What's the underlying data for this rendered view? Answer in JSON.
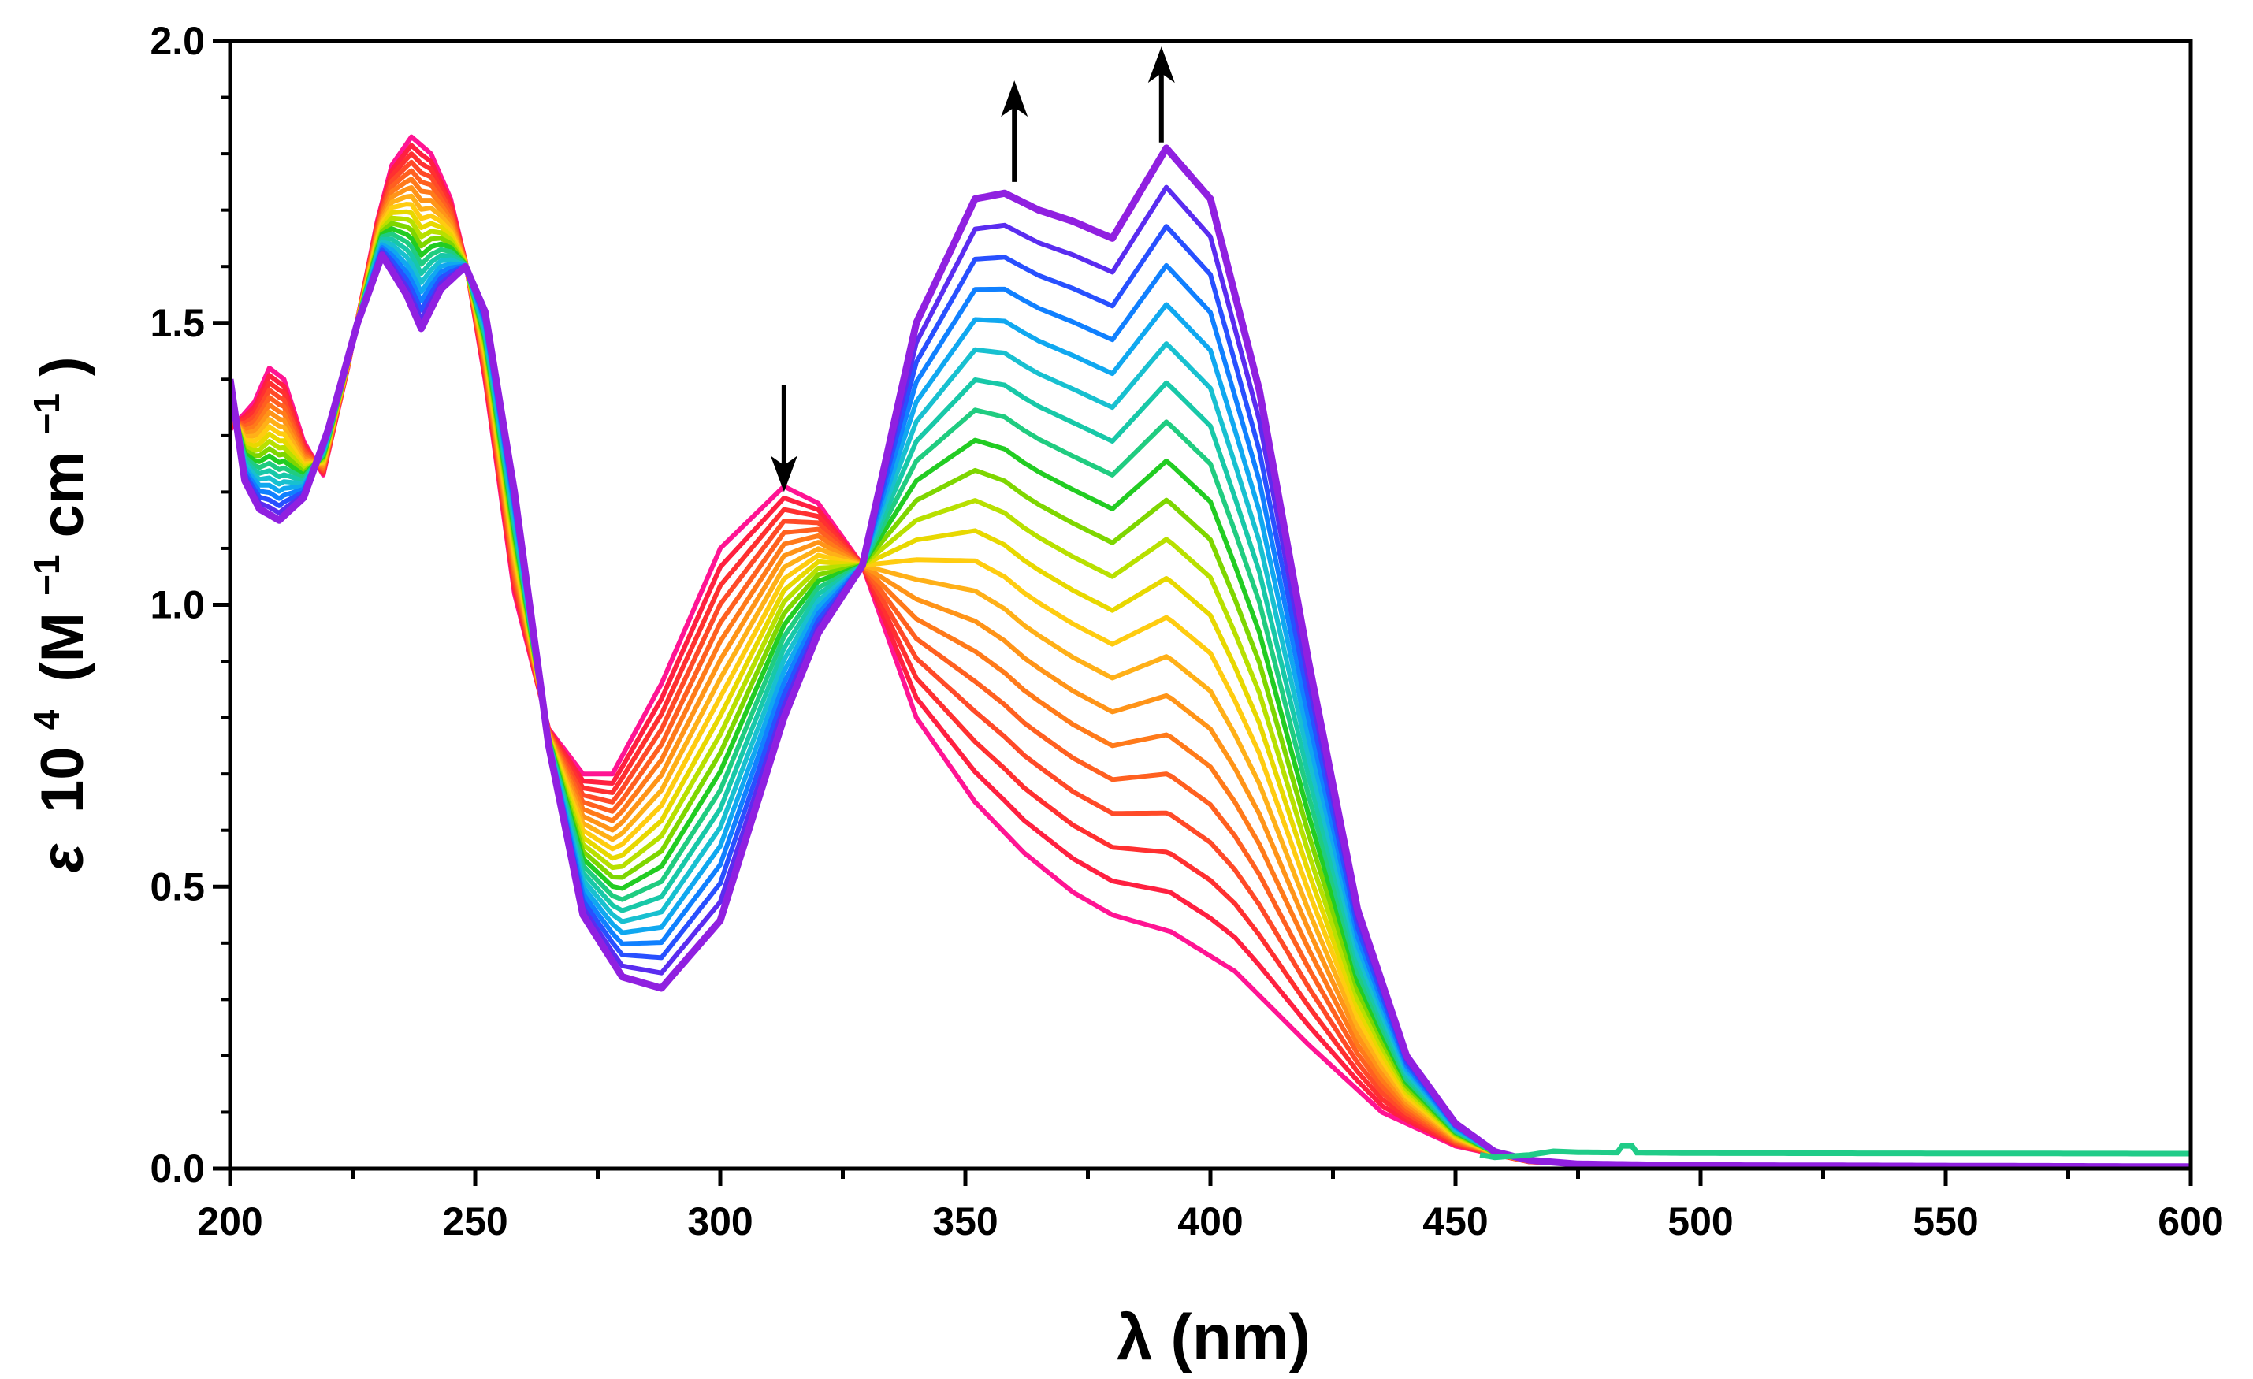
{
  "chart_data": {
    "type": "line",
    "title": "",
    "xlabel": {
      "symbol": "λ",
      "units": "(nm)"
    },
    "ylabel": {
      "symbol": "ε",
      "scale": "10",
      "scale_exp": "4",
      "units_prefix": "(M",
      "exp1": "−1",
      "mid": " cm",
      "exp2": "−1",
      "units_suffix": ")"
    },
    "xlim": [
      200,
      600
    ],
    "ylim": [
      0.0,
      2.0
    ],
    "x_ticks": [
      200,
      250,
      300,
      350,
      400,
      450,
      500,
      550,
      600
    ],
    "x_tick_labels": [
      "200",
      "250",
      "300",
      "350",
      "400",
      "450",
      "500",
      "550",
      "600"
    ],
    "y_ticks": [
      0.0,
      0.5,
      1.0,
      1.5,
      2.0
    ],
    "y_tick_labels": [
      "0.0",
      "0.5",
      "1.0",
      "1.5",
      "2.0"
    ],
    "grid": false,
    "legend": "none",
    "series_count": 21,
    "series_colors": [
      "#ff1493",
      "#ff2040",
      "#ff3030",
      "#ff4a28",
      "#ff6020",
      "#ff7a1a",
      "#ff9418",
      "#ffb018",
      "#ffcc10",
      "#e8d800",
      "#b8e000",
      "#7ed600",
      "#22cc22",
      "#20cc80",
      "#18c8a8",
      "#18c0d0",
      "#10a8f0",
      "#1080ff",
      "#2850ff",
      "#5a2cf0",
      "#9020e0"
    ],
    "series_start": {
      "x": [
        200,
        205,
        208,
        211,
        215,
        219,
        224,
        230,
        233,
        237,
        241,
        245,
        248,
        252,
        258,
        265,
        272,
        278,
        288,
        300,
        313,
        320,
        329,
        340,
        352,
        362,
        372,
        380,
        392,
        405,
        420,
        435,
        450,
        465,
        480,
        500,
        550,
        600
      ],
      "y": [
        1.31,
        1.36,
        1.42,
        1.4,
        1.29,
        1.23,
        1.42,
        1.68,
        1.78,
        1.83,
        1.8,
        1.72,
        1.61,
        1.4,
        1.02,
        0.78,
        0.7,
        0.7,
        0.86,
        1.1,
        1.21,
        1.18,
        1.07,
        0.8,
        0.65,
        0.56,
        0.49,
        0.45,
        0.42,
        0.35,
        0.22,
        0.1,
        0.04,
        0.012,
        0.006,
        0.004,
        0.003,
        0.002
      ]
    },
    "series_end": {
      "x": [
        200,
        203,
        206,
        210,
        215,
        220,
        226,
        231,
        236,
        239,
        243,
        248,
        252,
        258,
        265,
        272,
        280,
        288,
        300,
        313,
        320,
        329,
        340,
        352,
        358,
        365,
        372,
        380,
        391,
        400,
        410,
        420,
        430,
        440,
        450,
        458,
        465,
        475,
        500,
        550,
        600
      ],
      "y": [
        1.4,
        1.22,
        1.17,
        1.15,
        1.19,
        1.31,
        1.5,
        1.62,
        1.55,
        1.49,
        1.56,
        1.6,
        1.52,
        1.2,
        0.75,
        0.45,
        0.34,
        0.32,
        0.44,
        0.8,
        0.95,
        1.07,
        1.5,
        1.72,
        1.73,
        1.7,
        1.68,
        1.65,
        1.81,
        1.72,
        1.38,
        0.9,
        0.46,
        0.2,
        0.08,
        0.03,
        0.015,
        0.008,
        0.005,
        0.004,
        0.003
      ]
    },
    "baseline_outlier": {
      "color": "#20cc88",
      "level": 0.025,
      "spike_x": 485
    },
    "annotations": [
      {
        "type": "arrow",
        "direction": "down",
        "x": 313,
        "y_tail": 1.39,
        "y_head": 1.2
      },
      {
        "type": "arrow",
        "direction": "up",
        "x": 360,
        "y_tail": 1.75,
        "y_head": 1.93
      },
      {
        "type": "arrow",
        "direction": "up",
        "x": 390,
        "y_tail": 1.82,
        "y_head": 1.99
      }
    ]
  }
}
